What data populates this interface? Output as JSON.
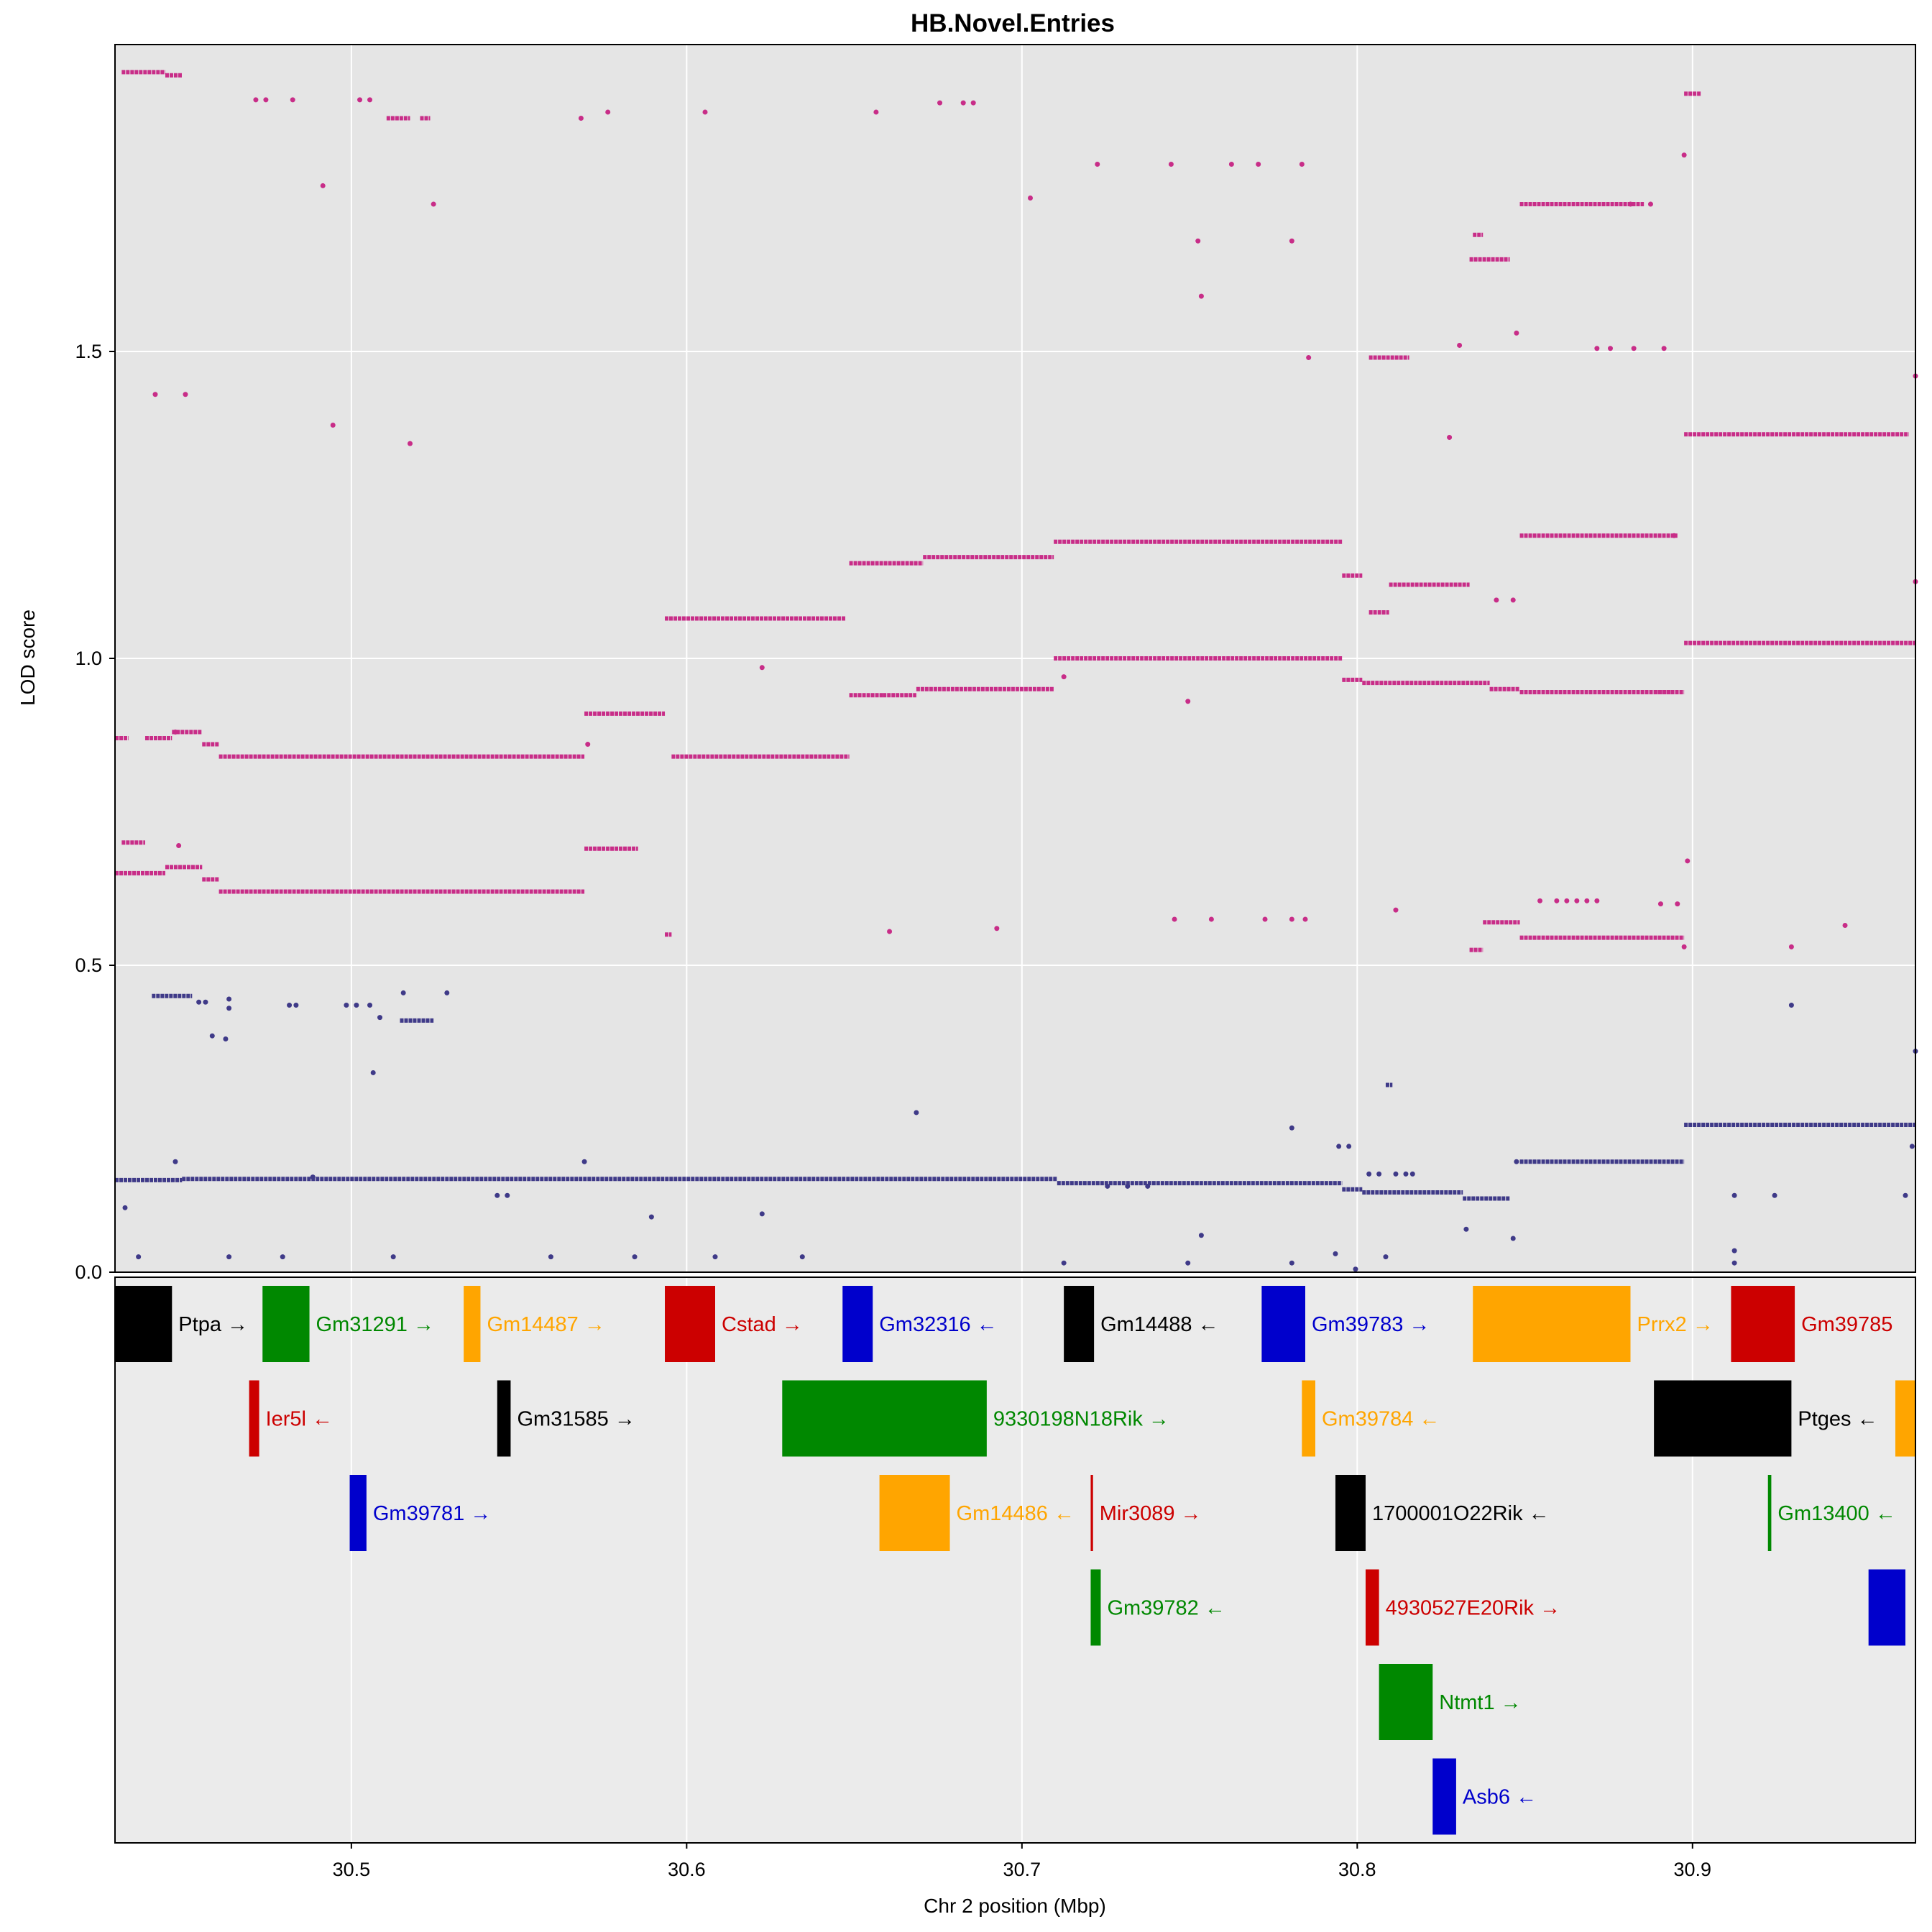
{
  "chart_data": {
    "type": "scatter",
    "title": "HB.Novel.Entries",
    "xlabel": "Chr 2 position (Mbp)",
    "ylabel": "LOD score",
    "xlim": [
      30.4295,
      30.9665
    ],
    "ylim": [
      0,
      2.0
    ],
    "xticks": [
      30.5,
      30.6,
      30.7,
      30.8,
      30.9
    ],
    "xtick_labels": [
      "30.5",
      "30.6",
      "30.7",
      "30.8",
      "30.9"
    ],
    "yticks": [
      0.0,
      0.5,
      1.0,
      1.5
    ],
    "ytick_labels": [
      "0.0",
      "0.5",
      "1.0",
      "1.5"
    ],
    "grid": true,
    "colors": {
      "panel_bg": "#e5e5e5",
      "gene_panel_bg": "#ebebeb",
      "grid": "#ffffff",
      "series_magenta": "#c82d88",
      "series_navy": "#3f3a88",
      "gene_black": "#000000",
      "gene_green": "#008800",
      "gene_orange": "#ffa500",
      "gene_red": "#cc0000",
      "gene_blue": "#0000cc"
    },
    "series": [
      {
        "color": "magenta",
        "segments": [
          [
            30.4295,
            30.4445,
            0.65
          ],
          [
            30.4445,
            30.4555,
            0.66
          ],
          [
            30.4555,
            30.4605,
            0.64
          ],
          [
            30.4605,
            30.5695,
            0.62
          ],
          [
            30.5695,
            30.5855,
            0.69
          ],
          [
            30.5935,
            30.5955,
            0.55
          ],
          [
            30.5955,
            30.6485,
            0.84
          ],
          [
            30.6485,
            30.6585,
            0.94
          ],
          [
            30.6585,
            30.6685,
            0.94
          ],
          [
            30.6685,
            30.7095,
            0.95
          ],
          [
            30.7095,
            30.7955,
            1.0
          ],
          [
            30.7955,
            30.8015,
            0.965
          ],
          [
            30.8015,
            30.8395,
            0.96
          ],
          [
            30.8395,
            30.8485,
            0.95
          ],
          [
            30.8485,
            30.8975,
            0.945
          ],
          [
            30.8975,
            30.9665,
            1.025
          ],
          [
            30.4295,
            30.4335,
            0.87
          ],
          [
            30.4385,
            30.4465,
            0.87
          ],
          [
            30.4465,
            30.4555,
            0.88
          ],
          [
            30.4555,
            30.4605,
            0.86
          ],
          [
            30.4605,
            30.5695,
            0.84
          ],
          [
            30.5695,
            30.5935,
            0.91
          ],
          [
            30.5935,
            30.6475,
            1.065
          ],
          [
            30.6485,
            30.6705,
            1.155
          ],
          [
            30.6705,
            30.7095,
            1.165
          ],
          [
            30.7095,
            30.7955,
            1.19
          ],
          [
            30.7955,
            30.8015,
            1.135
          ],
          [
            30.8035,
            30.8095,
            1.075
          ],
          [
            30.8095,
            30.8335,
            1.12
          ],
          [
            30.8335,
            30.8375,
            0.525
          ],
          [
            30.8375,
            30.8485,
            0.57
          ],
          [
            30.8485,
            30.8975,
            0.545
          ],
          [
            30.8485,
            30.8955,
            1.2
          ],
          [
            30.8975,
            30.9645,
            1.365
          ],
          [
            30.8975,
            30.9025,
            1.92
          ],
          [
            30.8335,
            30.8455,
            1.65
          ],
          [
            30.8345,
            30.8375,
            1.69
          ],
          [
            30.8485,
            30.8855,
            1.74
          ],
          [
            30.8035,
            30.8155,
            1.49
          ],
          [
            30.4315,
            30.4445,
            1.955
          ],
          [
            30.4445,
            30.4495,
            1.95
          ],
          [
            30.5105,
            30.5175,
            1.88
          ],
          [
            30.5205,
            30.5235,
            1.88
          ],
          [
            30.4315,
            30.4385,
            0.7
          ],
          [
            30.8885,
            30.8935,
            0.945
          ]
        ],
        "points": [
          [
            30.4415,
            1.43
          ],
          [
            30.4505,
            1.43
          ],
          [
            30.4485,
            0.695
          ],
          [
            30.4475,
            0.88
          ],
          [
            30.4715,
            1.91
          ],
          [
            30.4745,
            1.91
          ],
          [
            30.4825,
            1.91
          ],
          [
            30.4915,
            1.77
          ],
          [
            30.4945,
            1.38
          ],
          [
            30.5175,
            1.35
          ],
          [
            30.5245,
            1.74
          ],
          [
            30.5025,
            1.91
          ],
          [
            30.5055,
            1.91
          ],
          [
            30.5685,
            1.88
          ],
          [
            30.5765,
            1.89
          ],
          [
            30.5705,
            0.86
          ],
          [
            30.6055,
            1.89
          ],
          [
            30.6225,
            0.985
          ],
          [
            30.6565,
            1.89
          ],
          [
            30.6605,
            0.555
          ],
          [
            30.6925,
            0.56
          ],
          [
            30.6755,
            1.905
          ],
          [
            30.6825,
            1.905
          ],
          [
            30.6855,
            1.905
          ],
          [
            30.7025,
            1.75
          ],
          [
            30.7125,
            0.97
          ],
          [
            30.7225,
            1.805
          ],
          [
            30.7445,
            1.805
          ],
          [
            30.7495,
            0.93
          ],
          [
            30.7525,
            1.68
          ],
          [
            30.7535,
            1.59
          ],
          [
            30.7625,
            1.805
          ],
          [
            30.7705,
            1.805
          ],
          [
            30.7805,
            1.68
          ],
          [
            30.7835,
            1.805
          ],
          [
            30.7855,
            1.49
          ],
          [
            30.7455,
            0.575
          ],
          [
            30.7565,
            0.575
          ],
          [
            30.7725,
            0.575
          ],
          [
            30.7805,
            0.575
          ],
          [
            30.7845,
            0.575
          ],
          [
            30.8115,
            0.59
          ],
          [
            30.8275,
            1.36
          ],
          [
            30.8305,
            1.51
          ],
          [
            30.8415,
            1.095
          ],
          [
            30.8465,
            1.095
          ],
          [
            30.8475,
            1.53
          ],
          [
            30.8545,
            0.605
          ],
          [
            30.8595,
            0.605
          ],
          [
            30.8625,
            0.605
          ],
          [
            30.8655,
            0.605
          ],
          [
            30.8685,
            0.605
          ],
          [
            30.8715,
            0.605
          ],
          [
            30.8905,
            0.6
          ],
          [
            30.8955,
            0.6
          ],
          [
            30.8755,
            1.505
          ],
          [
            30.8825,
            1.505
          ],
          [
            30.8915,
            1.505
          ],
          [
            30.8715,
            1.505
          ],
          [
            30.8815,
            1.74
          ],
          [
            30.8875,
            1.74
          ],
          [
            30.8975,
            1.82
          ],
          [
            30.8985,
            0.67
          ],
          [
            30.8945,
            1.2
          ],
          [
            30.8975,
            0.53
          ],
          [
            30.9295,
            0.53
          ],
          [
            30.9455,
            0.565
          ],
          [
            30.9665,
            1.46
          ],
          [
            30.9665,
            1.125
          ]
        ]
      },
      {
        "color": "navy",
        "segments": [
          [
            30.4295,
            30.4495,
            0.15
          ],
          [
            30.4495,
            30.7105,
            0.152
          ],
          [
            30.7105,
            30.7955,
            0.145
          ],
          [
            30.7955,
            30.8015,
            0.135
          ],
          [
            30.8015,
            30.8315,
            0.13
          ],
          [
            30.8315,
            30.8455,
            0.12
          ],
          [
            30.8485,
            30.8975,
            0.18
          ],
          [
            30.8975,
            30.9665,
            0.24
          ],
          [
            30.4405,
            30.4525,
            0.45
          ],
          [
            30.5145,
            30.5245,
            0.41
          ],
          [
            30.8085,
            30.8105,
            0.305
          ]
        ],
        "points": [
          [
            30.4325,
            0.105
          ],
          [
            30.4365,
            0.025
          ],
          [
            30.4475,
            0.18
          ],
          [
            30.4545,
            0.44
          ],
          [
            30.4565,
            0.44
          ],
          [
            30.4585,
            0.385
          ],
          [
            30.4625,
            0.38
          ],
          [
            30.4635,
            0.445
          ],
          [
            30.4635,
            0.43
          ],
          [
            30.4635,
            0.025
          ],
          [
            30.4815,
            0.435
          ],
          [
            30.4835,
            0.435
          ],
          [
            30.4795,
            0.025
          ],
          [
            30.4885,
            0.155
          ],
          [
            30.4985,
            0.435
          ],
          [
            30.5015,
            0.435
          ],
          [
            30.5055,
            0.435
          ],
          [
            30.5065,
            0.325
          ],
          [
            30.5085,
            0.415
          ],
          [
            30.5125,
            0.025
          ],
          [
            30.5155,
            0.455
          ],
          [
            30.5285,
            0.455
          ],
          [
            30.5435,
            0.125
          ],
          [
            30.5465,
            0.125
          ],
          [
            30.5595,
            0.025
          ],
          [
            30.5695,
            0.18
          ],
          [
            30.5845,
            0.025
          ],
          [
            30.5895,
            0.09
          ],
          [
            30.6085,
            0.025
          ],
          [
            30.6225,
            0.095
          ],
          [
            30.6345,
            0.025
          ],
          [
            30.6685,
            0.26
          ],
          [
            30.7125,
            0.015
          ],
          [
            30.7255,
            0.14
          ],
          [
            30.7315,
            0.14
          ],
          [
            30.7375,
            0.14
          ],
          [
            30.7495,
            0.015
          ],
          [
            30.7535,
            0.06
          ],
          [
            30.7805,
            0.235
          ],
          [
            30.7805,
            0.015
          ],
          [
            30.7935,
            0.03
          ],
          [
            30.7945,
            0.205
          ],
          [
            30.7975,
            0.205
          ],
          [
            30.7995,
            0.005
          ],
          [
            30.8035,
            0.16
          ],
          [
            30.8065,
            0.16
          ],
          [
            30.8085,
            0.025
          ],
          [
            30.8115,
            0.16
          ],
          [
            30.8145,
            0.16
          ],
          [
            30.8165,
            0.16
          ],
          [
            30.8325,
            0.07
          ],
          [
            30.8465,
            0.055
          ],
          [
            30.8475,
            0.18
          ],
          [
            30.9125,
            0.125
          ],
          [
            30.9125,
            0.035
          ],
          [
            30.9125,
            0.015
          ],
          [
            30.9245,
            0.125
          ],
          [
            30.9295,
            0.435
          ],
          [
            30.9635,
            0.125
          ],
          [
            30.9655,
            0.205
          ],
          [
            30.9665,
            0.36
          ]
        ]
      }
    ],
    "genes": [
      {
        "name": "Ptpa",
        "arrow": "→",
        "start": 30.4295,
        "end": 30.4465,
        "row": 0,
        "color": "black"
      },
      {
        "name": "Gm31291",
        "arrow": "→",
        "start": 30.4735,
        "end": 30.4875,
        "row": 0,
        "color": "green"
      },
      {
        "name": "Gm14487",
        "arrow": "→",
        "start": 30.5335,
        "end": 30.5385,
        "row": 0,
        "color": "orange"
      },
      {
        "name": "Cstad",
        "arrow": "→",
        "start": 30.5935,
        "end": 30.6085,
        "row": 0,
        "color": "red"
      },
      {
        "name": "Gm32316",
        "arrow": "←",
        "start": 30.6465,
        "end": 30.6555,
        "row": 0,
        "color": "blue"
      },
      {
        "name": "Gm14488",
        "arrow": "←",
        "start": 30.7125,
        "end": 30.7215,
        "row": 0,
        "color": "black"
      },
      {
        "name": "Gm39783",
        "arrow": "→",
        "start": 30.7715,
        "end": 30.7845,
        "row": 0,
        "color": "blue"
      },
      {
        "name": "Prrx2",
        "arrow": "→",
        "start": 30.8345,
        "end": 30.8815,
        "row": 0,
        "color": "orange"
      },
      {
        "name": "Gm39785",
        "arrow": "",
        "start": 30.9115,
        "end": 30.9305,
        "row": 0,
        "color": "red"
      },
      {
        "name": "Ier5l",
        "arrow": "←",
        "start": 30.4695,
        "end": 30.4725,
        "row": 1,
        "color": "red"
      },
      {
        "name": "Gm31585",
        "arrow": "→",
        "start": 30.5435,
        "end": 30.5475,
        "row": 1,
        "color": "black"
      },
      {
        "name": "9330198N18Rik",
        "arrow": "→",
        "start": 30.6285,
        "end": 30.6895,
        "row": 1,
        "color": "green"
      },
      {
        "name": "Gm39784",
        "arrow": "←",
        "start": 30.7835,
        "end": 30.7875,
        "row": 1,
        "color": "orange"
      },
      {
        "name": "Ptges",
        "arrow": "←",
        "start": 30.8885,
        "end": 30.9295,
        "row": 1,
        "color": "black"
      },
      {
        "name": "",
        "arrow": "",
        "start": 30.9605,
        "end": 30.9665,
        "row": 1,
        "color": "orange"
      },
      {
        "name": "Gm39781",
        "arrow": "→",
        "start": 30.4995,
        "end": 30.5045,
        "row": 2,
        "color": "blue"
      },
      {
        "name": "Gm14486",
        "arrow": "←",
        "start": 30.6575,
        "end": 30.6785,
        "row": 2,
        "color": "orange"
      },
      {
        "name": "Mir3089",
        "arrow": "→",
        "start": 30.7205,
        "end": 30.7212,
        "row": 2,
        "color": "red"
      },
      {
        "name": "1700001O22Rik",
        "arrow": "←",
        "start": 30.7935,
        "end": 30.8025,
        "row": 2,
        "color": "black"
      },
      {
        "name": "Gm13400",
        "arrow": "←",
        "start": 30.9225,
        "end": 30.9235,
        "row": 2,
        "color": "green"
      },
      {
        "name": "Gm39782",
        "arrow": "←",
        "start": 30.7205,
        "end": 30.7235,
        "row": 3,
        "color": "green"
      },
      {
        "name": "4930527E20Rik",
        "arrow": "→",
        "start": 30.8025,
        "end": 30.8065,
        "row": 3,
        "color": "red"
      },
      {
        "name": "",
        "arrow": "",
        "start": 30.9525,
        "end": 30.9635,
        "row": 3,
        "color": "blue"
      },
      {
        "name": "Ntmt1",
        "arrow": "→",
        "start": 30.8065,
        "end": 30.8225,
        "row": 4,
        "color": "green"
      },
      {
        "name": "Asb6",
        "arrow": "←",
        "start": 30.8225,
        "end": 30.8295,
        "row": 5,
        "color": "blue"
      }
    ]
  }
}
